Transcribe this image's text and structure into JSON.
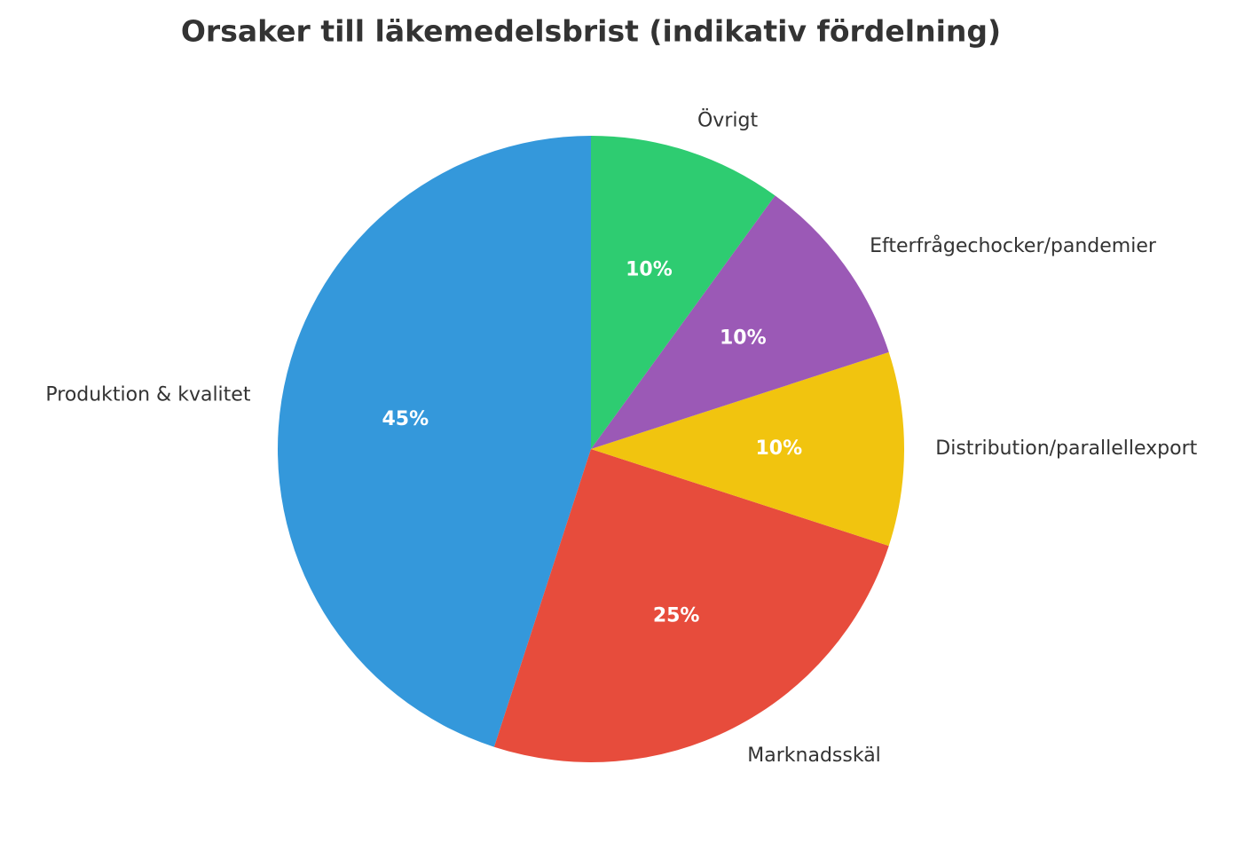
{
  "chart_data": {
    "type": "pie",
    "title": "Orsaker till läkemedelsbrist (indikativ fördelning)",
    "categories": [
      "Produktion & kvalitet",
      "Marknadsskäl",
      "Distribution/parallellexport",
      "Efterfrågechocker/pandemier",
      "Övrigt"
    ],
    "values": [
      45,
      25,
      10,
      10,
      10
    ],
    "value_labels": [
      "45%",
      "25%",
      "10%",
      "10%",
      "10%"
    ],
    "colors": [
      "#3498db",
      "#e74c3c",
      "#f1c40f",
      "#9b59b6",
      "#2ecc71"
    ]
  }
}
